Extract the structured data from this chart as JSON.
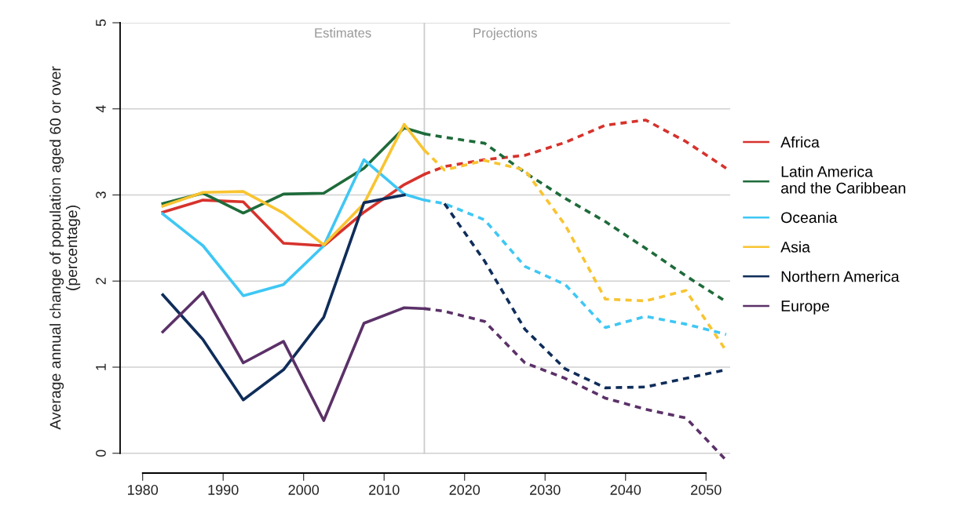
{
  "chart_data": {
    "type": "line",
    "ylabel": "Average annual change of population aged 60 or over\n(percentage)",
    "xlim": [
      1977.2,
      2053
    ],
    "xticks": [
      1980,
      1990,
      2000,
      2010,
      2020,
      2030,
      2040,
      2050
    ],
    "ylim": [
      -0.23,
      5.0
    ],
    "yticks": [
      0,
      1,
      2,
      3,
      4,
      5
    ],
    "grid": "y",
    "legend": "right",
    "marker": "none",
    "ref_lines": [
      {
        "axis": "x",
        "value": 2015,
        "label": null,
        "color": "#cccccc"
      }
    ],
    "annotations": [
      "Estimates",
      "Projections"
    ],
    "series": [
      {
        "name": "Africa",
        "color": "#d7322c",
        "line_style": "solid",
        "x": [
          1982.5,
          1987.5,
          1992.5,
          1997.5,
          2002.5,
          2007.5,
          2012.5,
          2015
        ],
        "values": [
          2.8,
          2.94,
          2.92,
          2.44,
          2.41,
          2.8,
          3.12,
          3.24
        ]
      },
      {
        "name": "Latin America\nand the Caribbean",
        "color": "#1e6b3a",
        "line_style": "solid",
        "x": [
          1982.5,
          1987.5,
          1992.5,
          1997.5,
          2002.5,
          2007.5,
          2012.5,
          2015
        ],
        "values": [
          2.9,
          3.02,
          2.79,
          3.01,
          3.02,
          3.31,
          3.78,
          3.71
        ]
      },
      {
        "name": "Oceania",
        "color": "#3fc7f4",
        "line_style": "solid",
        "x": [
          1982.5,
          1987.5,
          1992.5,
          1997.5,
          2002.5,
          2007.5,
          2012.5,
          2015
        ],
        "values": [
          2.78,
          2.41,
          1.83,
          1.96,
          2.41,
          3.41,
          3.01,
          2.94
        ]
      },
      {
        "name": "Asia",
        "color": "#f8c431",
        "line_style": "solid",
        "x": [
          1982.5,
          1987.5,
          1992.5,
          1997.5,
          2002.5,
          2007.5,
          2012.5,
          2015
        ],
        "values": [
          2.87,
          3.03,
          3.04,
          2.79,
          2.42,
          2.9,
          3.82,
          3.52
        ]
      },
      {
        "name": "Northern America",
        "color": "#0f2d5a",
        "line_style": "solid",
        "x": [
          1982.5,
          1987.5,
          1992.5,
          1997.5,
          2002.5,
          2007.5,
          2012.5
        ],
        "values": [
          1.84,
          1.32,
          0.62,
          0.97,
          1.58,
          2.91,
          3.0
        ]
      },
      {
        "name": "Europe",
        "color": "#5b3168",
        "line_style": "solid",
        "x": [
          1982.5,
          1987.5,
          1992.5,
          1997.5,
          2002.5,
          2007.5,
          2012.5,
          2015
        ],
        "values": [
          1.41,
          1.87,
          1.05,
          1.3,
          0.38,
          1.51,
          1.69,
          1.68
        ]
      },
      {
        "color": "#d7322c",
        "line_style": "dashed",
        "x": [
          2015,
          2017.5,
          2022.5,
          2027.5,
          2032.5,
          2037.5,
          2042.5,
          2047.5,
          2052.5
        ],
        "values": [
          3.24,
          3.33,
          3.41,
          3.46,
          3.61,
          3.81,
          3.87,
          3.62,
          3.31
        ]
      },
      {
        "color": "#1e6b3a",
        "line_style": "dashed",
        "x": [
          2015,
          2017.5,
          2022.5,
          2027.5,
          2032.5,
          2037.5,
          2042.5,
          2047.5,
          2052.5
        ],
        "values": [
          3.71,
          3.67,
          3.6,
          3.26,
          2.96,
          2.69,
          2.38,
          2.06,
          1.76
        ]
      },
      {
        "color": "#3fc7f4",
        "line_style": "dashed",
        "x": [
          2015,
          2017.5,
          2022.5,
          2027.5,
          2032.5,
          2037.5,
          2042.5,
          2047.5,
          2052.5
        ],
        "values": [
          2.94,
          2.9,
          2.71,
          2.17,
          1.96,
          1.46,
          1.59,
          1.5,
          1.38
        ]
      },
      {
        "color": "#f8c431",
        "line_style": "dashed",
        "x": [
          2015,
          2017.5,
          2022.5,
          2027.5,
          2032.5,
          2037.5,
          2042.5,
          2047.5,
          2052.5
        ],
        "values": [
          3.52,
          3.29,
          3.4,
          3.29,
          2.65,
          1.79,
          1.77,
          1.89,
          1.19
        ]
      },
      {
        "color": "#0f2d5a",
        "line_style": "dashed",
        "x": [
          2017.5,
          2022.5,
          2027.5,
          2032.5,
          2037.5,
          2042.5,
          2047.5,
          2052.5
        ],
        "values": [
          2.9,
          2.23,
          1.44,
          0.98,
          0.76,
          0.77,
          0.87,
          0.97
        ]
      },
      {
        "color": "#5b3168",
        "line_style": "dashed",
        "x": [
          2015,
          2017.5,
          2022.5,
          2027.5,
          2032.5,
          2037.5,
          2042.5,
          2047.5,
          2052.5
        ],
        "values": [
          1.68,
          1.65,
          1.53,
          1.05,
          0.87,
          0.64,
          0.51,
          0.41,
          -0.08
        ]
      }
    ]
  }
}
